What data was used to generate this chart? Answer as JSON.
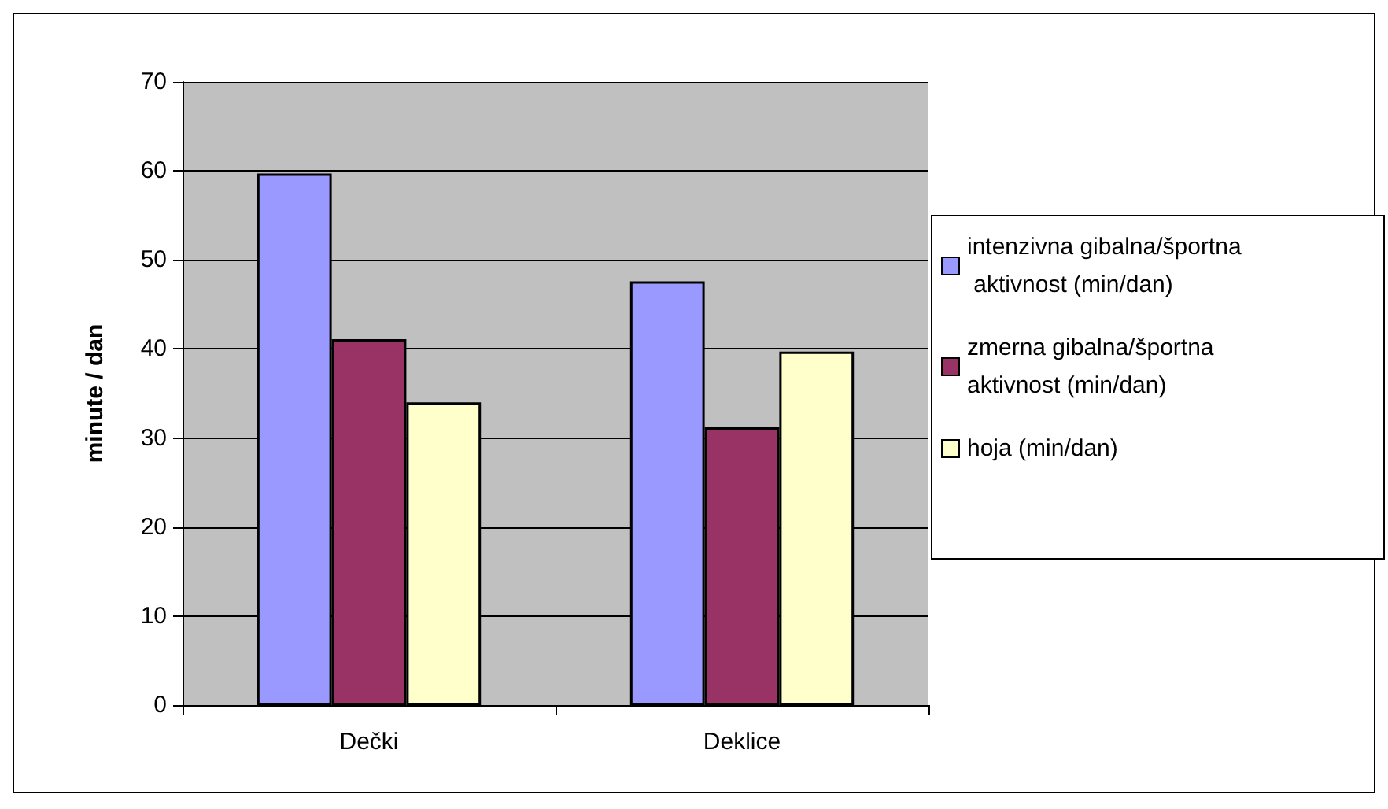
{
  "chart_data": {
    "type": "bar",
    "ylabel": "minute / dan",
    "categories": [
      "Dečki",
      "Deklice"
    ],
    "series": [
      {
        "name": "intenzivna gibalna/športna aktivnost (min/dan)",
        "color": "#9999ff",
        "values": [
          59.7,
          47.6
        ]
      },
      {
        "name": "zmerna gibalna/športna aktivnost (min/dan)",
        "color": "#993366",
        "values": [
          41.1,
          31.2
        ]
      },
      {
        "name": "hoja (min/dan)",
        "color": "#ffffcc",
        "values": [
          34.0,
          39.7
        ]
      }
    ],
    "ylim": [
      0,
      70
    ],
    "yticks": [
      0,
      10,
      20,
      30,
      40,
      50,
      60,
      70
    ],
    "grid": "y",
    "legend": "right"
  }
}
